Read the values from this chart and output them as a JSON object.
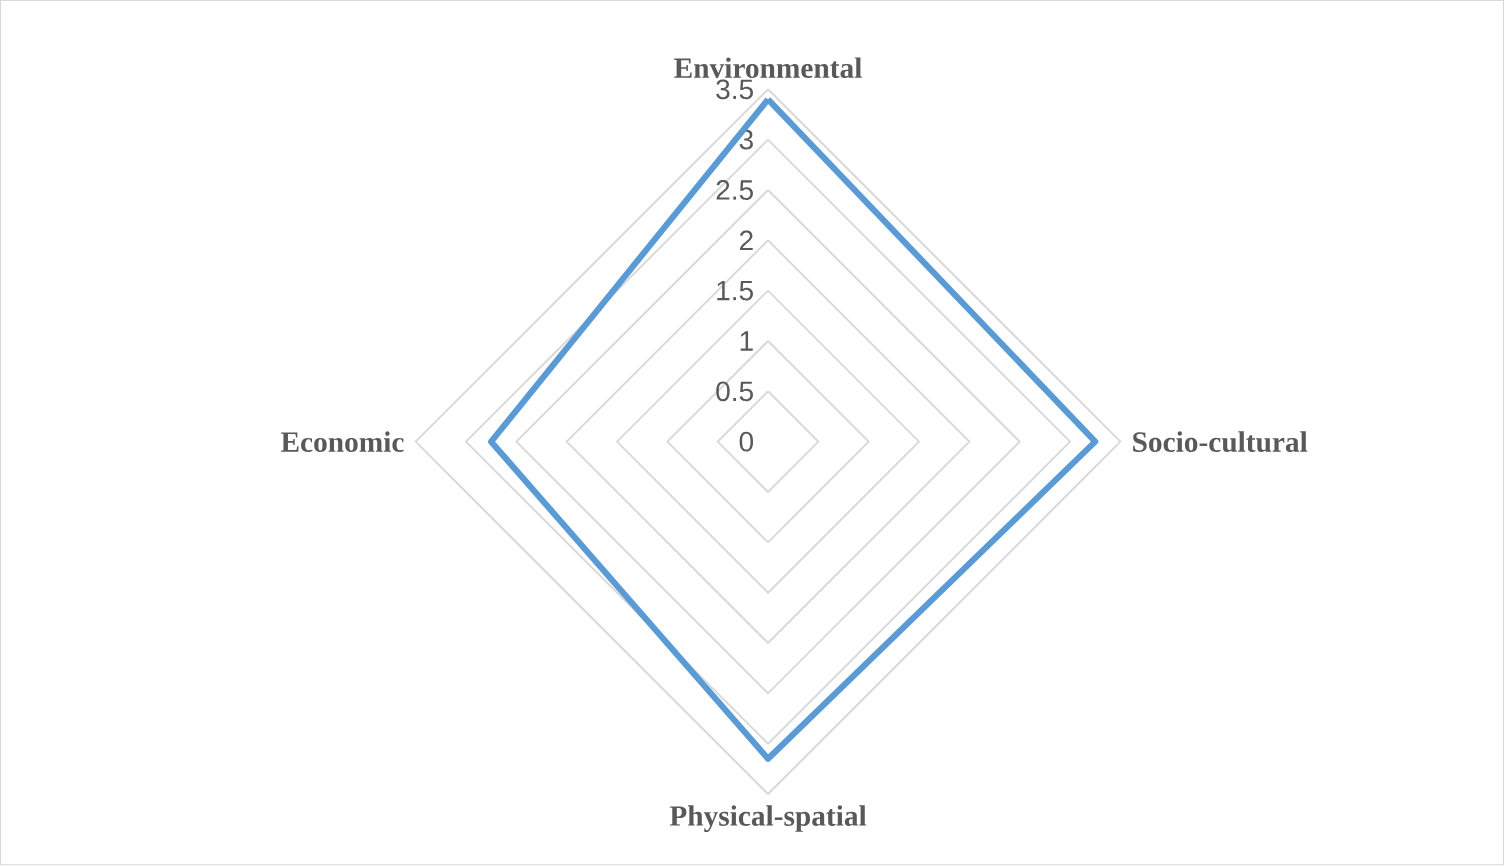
{
  "chart_data": {
    "type": "radar",
    "categories": [
      "Environmental",
      "Socio-cultural",
      "Physical-spatial",
      "Economic"
    ],
    "series": [
      {
        "color": "#5b9bd5",
        "values": [
          3.4,
          3.25,
          3.15,
          2.75
        ]
      }
    ],
    "ylim": [
      0,
      3.5
    ],
    "yticks": [
      0,
      0.5,
      1,
      1.5,
      2,
      2.5,
      3,
      3.5
    ],
    "grid": true
  }
}
